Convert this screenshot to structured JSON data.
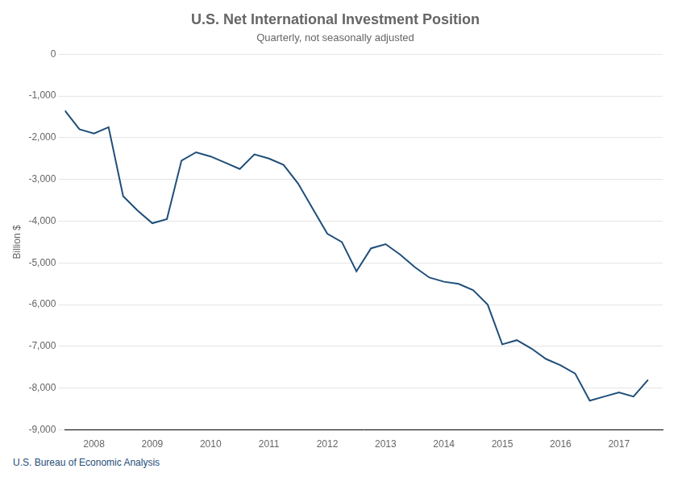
{
  "chart_data": {
    "type": "line",
    "title": "U.S. Net International Investment Position",
    "subtitle": "Quarterly, not seasonally adjusted",
    "ylabel": "Billion $",
    "source": "U.S. Bureau of Economic Analysis",
    "color": "#1F4E79",
    "grid": "y",
    "x": [
      2007.5,
      2007.75,
      2008.0,
      2008.25,
      2008.5,
      2008.75,
      2009.0,
      2009.25,
      2009.5,
      2009.75,
      2010.0,
      2010.25,
      2010.5,
      2010.75,
      2011.0,
      2011.25,
      2011.5,
      2011.75,
      2012.0,
      2012.25,
      2012.5,
      2012.75,
      2013.0,
      2013.25,
      2013.5,
      2013.75,
      2014.0,
      2014.25,
      2014.5,
      2014.75,
      2015.0,
      2015.25,
      2015.5,
      2015.75,
      2016.0,
      2016.25,
      2016.5,
      2016.75,
      2017.0,
      2017.25,
      2017.5
    ],
    "values": [
      -1350,
      -1800,
      -1900,
      -1750,
      -3400,
      -3750,
      -4050,
      -3950,
      -2550,
      -2350,
      -2450,
      -2600,
      -2750,
      -2400,
      -2500,
      -2650,
      -3100,
      -3700,
      -4300,
      -4500,
      -5200,
      -4650,
      -4550,
      -4800,
      -5100,
      -5350,
      -5450,
      -5500,
      -5650,
      -6000,
      -6950,
      -6850,
      -7050,
      -7300,
      -7450,
      -7650,
      -8300,
      -8200,
      -8100,
      -8200,
      -7800
    ],
    "xlim": [
      2007.5,
      2017.75
    ],
    "xticks": [
      2008,
      2009,
      2010,
      2011,
      2012,
      2013,
      2014,
      2015,
      2016,
      2017
    ],
    "ylim": [
      -9000,
      0
    ],
    "yticks": [
      0,
      {
        "value": -1000,
        "label": "-1,000"
      },
      {
        "value": -2000,
        "label": "-2,000"
      },
      {
        "value": -3000,
        "label": "-3,000"
      },
      {
        "value": -4000,
        "label": "-4,000"
      },
      {
        "value": -5000,
        "label": "-5,000"
      },
      {
        "value": -6000,
        "label": "-6,000"
      },
      {
        "value": -7000,
        "label": "-7,000"
      },
      {
        "value": -8000,
        "label": "-8,000"
      },
      {
        "value": -9000,
        "label": "-9,000"
      }
    ]
  }
}
